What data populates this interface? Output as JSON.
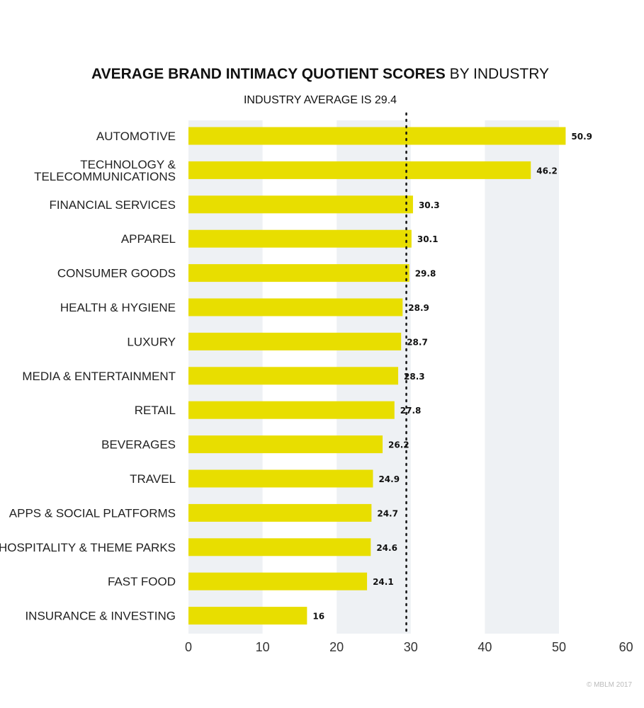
{
  "chart_data": {
    "type": "bar",
    "orientation": "horizontal",
    "title_bold": "AVERAGE BRAND INTIMACY QUOTIENT SCORES",
    "title_rest": "BY INDUSTRY",
    "subtitle": "INDUSTRY AVERAGE IS 29.4",
    "reference_line": 29.4,
    "categories": [
      [
        "AUTOMOTIVE"
      ],
      [
        "TECHNOLOGY &",
        "TELECOMMUNICATIONS"
      ],
      [
        "FINANCIAL SERVICES"
      ],
      [
        "APPAREL"
      ],
      [
        "CONSUMER GOODS"
      ],
      [
        "HEALTH & HYGIENE"
      ],
      [
        "LUXURY"
      ],
      [
        "MEDIA & ENTERTAINMENT"
      ],
      [
        "RETAIL"
      ],
      [
        "BEVERAGES"
      ],
      [
        "TRAVEL"
      ],
      [
        "APPS & SOCIAL PLATFORMS"
      ],
      [
        "HOSPITALITY & THEME PARKS"
      ],
      [
        "FAST FOOD"
      ],
      [
        "INSURANCE & INVESTING"
      ]
    ],
    "values": [
      50.9,
      46.2,
      30.3,
      30.1,
      29.8,
      28.9,
      28.7,
      28.3,
      27.8,
      26.2,
      24.9,
      24.7,
      24.6,
      24.1,
      16
    ],
    "value_labels": [
      "50.9",
      "46.2",
      "30.3",
      "30.1",
      "29.8",
      "28.9",
      "28.7",
      "28.3",
      "27.8",
      "26.2",
      "24.9",
      "24.7",
      "24.6",
      "24.1",
      "16"
    ],
    "xticks": [
      "0",
      "10",
      "20",
      "30",
      "40",
      "50",
      "60"
    ],
    "xlim": [
      0,
      60
    ],
    "xlabel": "",
    "ylabel": "",
    "bar_color": "#e8de00",
    "band_color": "#eef1f4",
    "credit": "© MBLM 2017"
  }
}
